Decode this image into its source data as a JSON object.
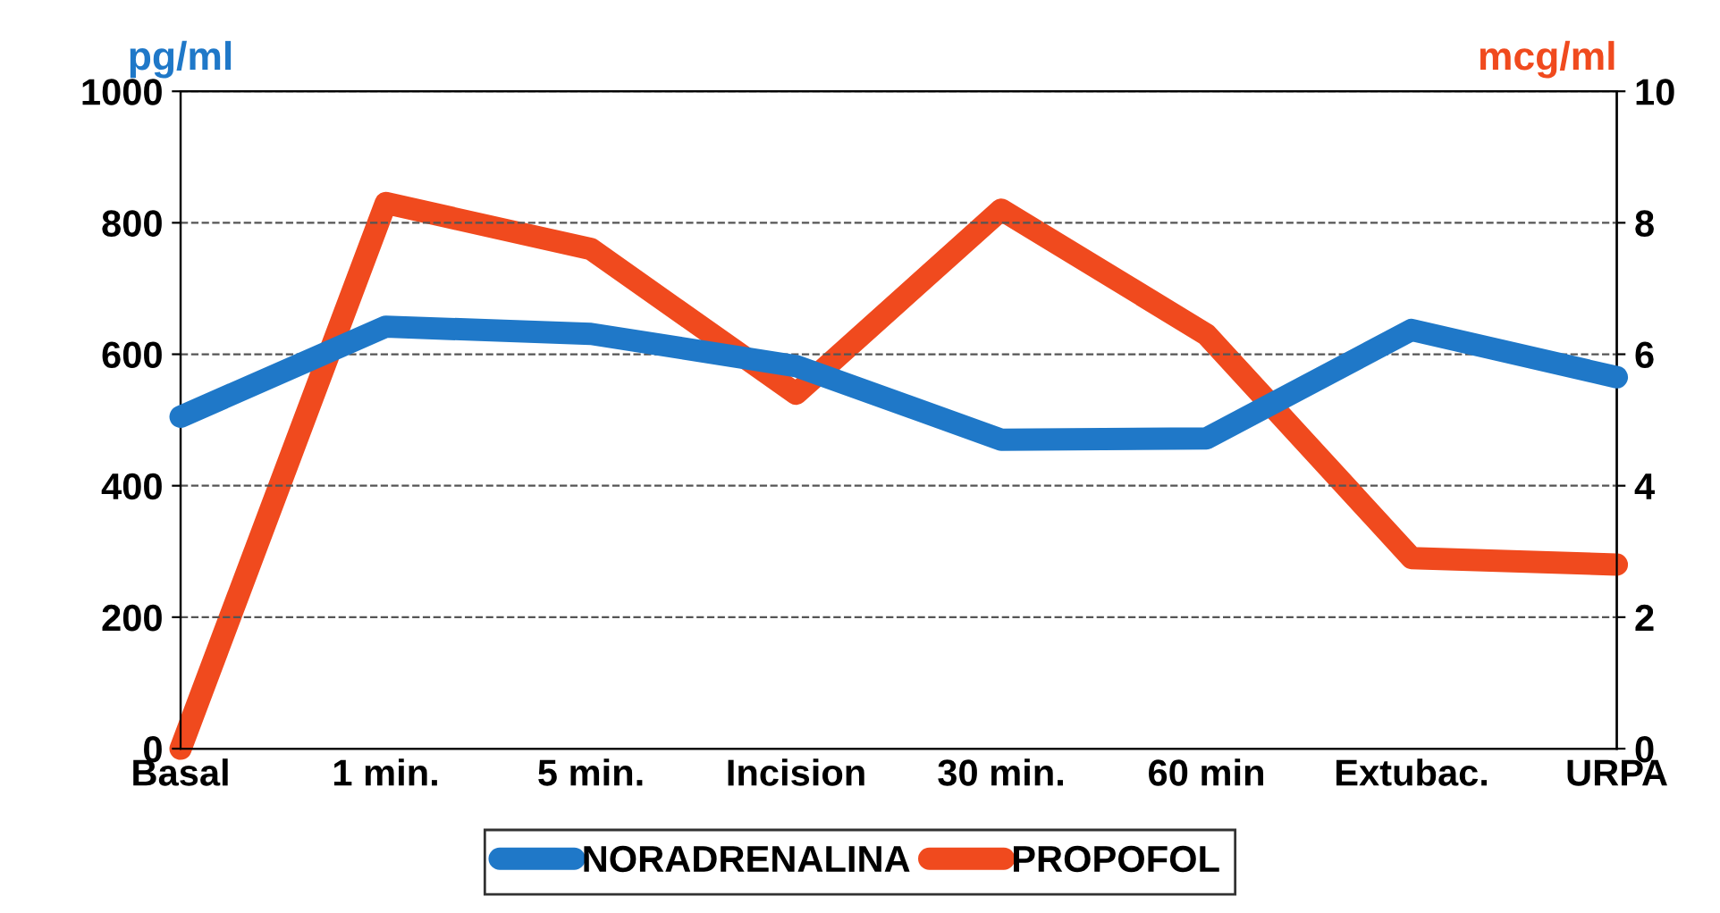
{
  "chart_data": {
    "type": "line",
    "categories": [
      "Basal",
      "1 min.",
      "5 min.",
      "Incision",
      "30 min.",
      "60 min",
      "Extubac.",
      "URPA"
    ],
    "series": [
      {
        "name": "NORADRENALINA",
        "color": "#1f78c8",
        "values": [
          505,
          642,
          631,
          582,
          470,
          472,
          637,
          565
        ]
      },
      {
        "name": "PROPOFOL",
        "color": "#f04a1e",
        "axis": "y2",
        "values": [
          0,
          8.3,
          7.6,
          5.4,
          8.2,
          6.3,
          2.9,
          2.8
        ]
      }
    ],
    "ylabel": "pg/ml",
    "y2label": "mcg/ml",
    "ylim": [
      0,
      1000
    ],
    "yticks": [
      0,
      200,
      400,
      600,
      800,
      1000
    ],
    "y2lim": [
      0,
      10
    ],
    "y2ticks": [
      0,
      2,
      4,
      6,
      8,
      10
    ],
    "grid": "y",
    "legend": "bottom",
    "line_style": "solid"
  }
}
